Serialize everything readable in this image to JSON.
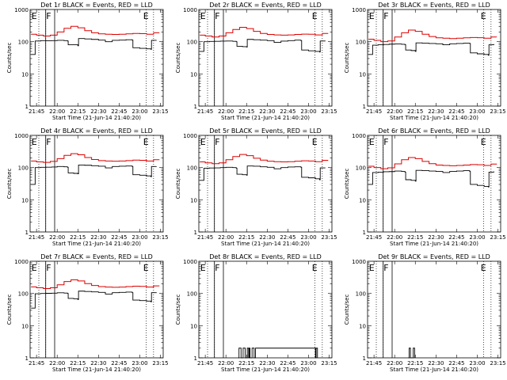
{
  "chart_data": {
    "type": "line",
    "layout": "3x3 grid",
    "ylabel": "Counts/sec",
    "xlabel": "Start Time (21-Jun-14 21:40:20)",
    "x_tick_labels": [
      "21:45",
      "22:00",
      "22:15",
      "22:30",
      "22:45",
      "23:00",
      "23:15"
    ],
    "y_scale": "log",
    "ylim": [
      1,
      1000
    ],
    "y_tick_labels": [
      "1",
      "10",
      "100",
      "1000"
    ],
    "series_colors": {
      "events": "#000000",
      "lld": "#dd0000"
    },
    "markers": {
      "E_left": {
        "label": "E",
        "time": "21:43:20"
      },
      "F": {
        "label": "F",
        "time": "21:53:50"
      },
      "E_right": {
        "label": "E",
        "time": "23:04:30"
      }
    },
    "vlines": {
      "dotted": [
        "21:46:40",
        "21:51:40",
        "23:04:40",
        "23:10:00"
      ],
      "solid": [
        "21:51:40",
        "21:58:10"
      ]
    },
    "panels": [
      {
        "title": "Det 1r BLACK = Events, RED = LLD",
        "events": {
          "x": [
            "21:41:00",
            "21:44:00",
            "21:48:00",
            "21:52:00",
            "21:56:00",
            "22:00:00",
            "22:05:00",
            "22:07:30",
            "22:08:00",
            "22:12:00",
            "22:15:00",
            "22:15:30",
            "22:20:00",
            "22:25:00",
            "22:30:00",
            "22:35:00",
            "22:40:00",
            "22:45:00",
            "22:50:00",
            "22:54:30",
            "22:55:00",
            "23:00:00",
            "23:05:00",
            "23:08:00",
            "23:08:30",
            "23:12:00"
          ],
          "y": [
            40,
            105,
            108,
            107,
            108,
            110,
            108,
            105,
            80,
            80,
            75,
            125,
            122,
            118,
            112,
            100,
            110,
            112,
            115,
            112,
            65,
            62,
            60,
            58,
            110,
            112
          ]
        },
        "lld": {
          "x": [
            "21:41:00",
            "21:45:00",
            "21:50:00",
            "21:55:00",
            "22:00:00",
            "22:05:00",
            "22:10:00",
            "22:15:00",
            "22:20:00",
            "22:25:00",
            "22:30:00",
            "22:35:00",
            "22:40:00",
            "22:45:00",
            "22:50:00",
            "22:55:00",
            "23:00:00",
            "23:05:00",
            "23:10:00",
            "23:14:00"
          ],
          "y": [
            170,
            160,
            150,
            160,
            200,
            260,
            300,
            270,
            220,
            190,
            175,
            170,
            168,
            170,
            175,
            180,
            178,
            170,
            190,
            185
          ]
        }
      },
      {
        "title": "Det 2r BLACK = Events, RED = LLD",
        "events": {
          "x": [
            "21:41:00",
            "21:44:00",
            "21:48:00",
            "21:52:00",
            "21:56:00",
            "22:00:00",
            "22:05:00",
            "22:07:30",
            "22:08:00",
            "22:12:00",
            "22:15:00",
            "22:15:30",
            "22:20:00",
            "22:25:00",
            "22:30:00",
            "22:35:00",
            "22:40:00",
            "22:45:00",
            "22:50:00",
            "22:54:30",
            "22:55:00",
            "23:00:00",
            "23:05:00",
            "23:08:00",
            "23:08:30",
            "23:12:00"
          ],
          "y": [
            50,
            100,
            102,
            103,
            104,
            105,
            103,
            100,
            72,
            70,
            68,
            118,
            115,
            112,
            108,
            95,
            104,
            108,
            112,
            108,
            55,
            52,
            50,
            48,
            105,
            108
          ]
        },
        "lld": {
          "x": [
            "21:41:00",
            "21:45:00",
            "21:50:00",
            "21:55:00",
            "22:00:00",
            "22:05:00",
            "22:10:00",
            "22:15:00",
            "22:20:00",
            "22:25:00",
            "22:30:00",
            "22:35:00",
            "22:40:00",
            "22:45:00",
            "22:50:00",
            "22:55:00",
            "23:00:00",
            "23:05:00",
            "23:10:00",
            "23:14:00"
          ],
          "y": [
            160,
            150,
            140,
            150,
            190,
            240,
            280,
            255,
            210,
            180,
            168,
            162,
            160,
            162,
            168,
            172,
            170,
            162,
            180,
            175
          ]
        }
      },
      {
        "title": "Det 3r BLACK = Events, RED = LLD",
        "events": {
          "x": [
            "21:41:00",
            "21:44:00",
            "21:48:00",
            "21:52:00",
            "21:56:00",
            "22:00:00",
            "22:05:00",
            "22:07:30",
            "22:08:00",
            "22:12:00",
            "22:15:00",
            "22:15:30",
            "22:20:00",
            "22:25:00",
            "22:30:00",
            "22:35:00",
            "22:40:00",
            "22:45:00",
            "22:50:00",
            "22:54:30",
            "22:55:00",
            "23:00:00",
            "23:05:00",
            "23:08:00",
            "23:08:30",
            "23:12:00"
          ],
          "y": [
            40,
            78,
            80,
            82,
            84,
            85,
            83,
            80,
            55,
            53,
            50,
            92,
            90,
            88,
            86,
            80,
            86,
            88,
            90,
            88,
            45,
            42,
            40,
            38,
            80,
            84
          ]
        },
        "lld": {
          "x": [
            "21:41:00",
            "21:45:00",
            "21:50:00",
            "21:55:00",
            "22:00:00",
            "22:05:00",
            "22:10:00",
            "22:15:00",
            "22:20:00",
            "22:25:00",
            "22:30:00",
            "22:35:00",
            "22:40:00",
            "22:45:00",
            "22:50:00",
            "22:55:00",
            "23:00:00",
            "23:05:00",
            "23:10:00",
            "23:14:00"
          ],
          "y": [
            120,
            110,
            100,
            105,
            140,
            190,
            230,
            210,
            170,
            145,
            132,
            128,
            125,
            128,
            132,
            135,
            133,
            128,
            140,
            138
          ]
        }
      },
      {
        "title": "Det 4r BLACK = Events, RED = LLD",
        "events": {
          "x": [
            "21:41:00",
            "21:44:00",
            "21:48:00",
            "21:52:00",
            "21:56:00",
            "22:00:00",
            "22:05:00",
            "22:07:30",
            "22:08:00",
            "22:12:00",
            "22:15:00",
            "22:15:30",
            "22:20:00",
            "22:25:00",
            "22:30:00",
            "22:35:00",
            "22:40:00",
            "22:45:00",
            "22:50:00",
            "22:54:30",
            "22:55:00",
            "23:00:00",
            "23:05:00",
            "23:08:00",
            "23:08:30",
            "23:12:00"
          ],
          "y": [
            30,
            100,
            102,
            103,
            104,
            108,
            106,
            102,
            68,
            66,
            64,
            120,
            118,
            114,
            110,
            98,
            108,
            110,
            112,
            108,
            60,
            58,
            55,
            52,
            108,
            110
          ]
        },
        "lld": {
          "x": [
            "21:41:00",
            "21:45:00",
            "21:50:00",
            "21:55:00",
            "22:00:00",
            "22:05:00",
            "22:10:00",
            "22:15:00",
            "22:20:00",
            "22:25:00",
            "22:30:00",
            "22:35:00",
            "22:40:00",
            "22:45:00",
            "22:50:00",
            "22:55:00",
            "23:00:00",
            "23:05:00",
            "23:10:00",
            "23:14:00"
          ],
          "y": [
            160,
            150,
            145,
            155,
            190,
            240,
            270,
            250,
            205,
            178,
            165,
            160,
            158,
            160,
            165,
            170,
            168,
            160,
            175,
            170
          ]
        }
      },
      {
        "title": "Det 5r BLACK = Events, RED = LLD",
        "events": {
          "x": [
            "21:41:00",
            "21:44:00",
            "21:48:00",
            "21:52:00",
            "21:56:00",
            "22:00:00",
            "22:05:00",
            "22:07:30",
            "22:08:00",
            "22:12:00",
            "22:15:00",
            "22:15:30",
            "22:20:00",
            "22:25:00",
            "22:30:00",
            "22:35:00",
            "22:40:00",
            "22:45:00",
            "22:50:00",
            "22:54:30",
            "22:55:00",
            "23:00:00",
            "23:05:00",
            "23:08:00",
            "23:08:30",
            "23:12:00"
          ],
          "y": [
            40,
            95,
            97,
            98,
            100,
            102,
            100,
            96,
            62,
            60,
            58,
            112,
            110,
            106,
            102,
            92,
            100,
            104,
            106,
            102,
            50,
            48,
            45,
            42,
            98,
            100
          ]
        },
        "lld": {
          "x": [
            "21:41:00",
            "21:45:00",
            "21:50:00",
            "21:55:00",
            "22:00:00",
            "22:05:00",
            "22:10:00",
            "22:15:00",
            "22:20:00",
            "22:25:00",
            "22:30:00",
            "22:35:00",
            "22:40:00",
            "22:45:00",
            "22:50:00",
            "22:55:00",
            "23:00:00",
            "23:05:00",
            "23:10:00",
            "23:14:00"
          ],
          "y": [
            150,
            140,
            132,
            140,
            175,
            220,
            255,
            235,
            195,
            170,
            158,
            152,
            150,
            152,
            158,
            162,
            160,
            152,
            168,
            162
          ]
        }
      },
      {
        "title": "Det 6r BLACK = Events, RED = LLD",
        "events": {
          "x": [
            "21:41:00",
            "21:44:00",
            "21:48:00",
            "21:52:00",
            "21:56:00",
            "22:00:00",
            "22:05:00",
            "22:07:30",
            "22:08:00",
            "22:12:00",
            "22:15:00",
            "22:15:30",
            "22:20:00",
            "22:25:00",
            "22:30:00",
            "22:35:00",
            "22:40:00",
            "22:45:00",
            "22:50:00",
            "22:54:30",
            "22:55:00",
            "23:00:00",
            "23:05:00",
            "23:08:00",
            "23:08:30",
            "23:12:00"
          ],
          "y": [
            30,
            70,
            72,
            74,
            75,
            78,
            76,
            72,
            42,
            40,
            38,
            82,
            80,
            78,
            76,
            70,
            76,
            78,
            80,
            76,
            30,
            28,
            26,
            25,
            72,
            76
          ]
        },
        "lld": {
          "x": [
            "21:41:00",
            "21:45:00",
            "21:50:00",
            "21:55:00",
            "22:00:00",
            "22:05:00",
            "22:10:00",
            "22:15:00",
            "22:20:00",
            "22:25:00",
            "22:30:00",
            "22:35:00",
            "22:40:00",
            "22:45:00",
            "22:50:00",
            "22:55:00",
            "23:00:00",
            "23:05:00",
            "23:10:00",
            "23:14:00"
          ],
          "y": [
            110,
            100,
            92,
            98,
            130,
            175,
            205,
            190,
            155,
            132,
            120,
            116,
            114,
            116,
            120,
            124,
            122,
            116,
            128,
            125
          ]
        }
      },
      {
        "title": "Det 7r BLACK = Events, RED = LLD",
        "events": {
          "x": [
            "21:41:00",
            "21:44:00",
            "21:48:00",
            "21:52:00",
            "21:56:00",
            "22:00:00",
            "22:05:00",
            "22:07:30",
            "22:08:00",
            "22:12:00",
            "22:15:00",
            "22:15:30",
            "22:20:00",
            "22:25:00",
            "22:30:00",
            "22:35:00",
            "22:40:00",
            "22:45:00",
            "22:50:00",
            "22:54:30",
            "22:55:00",
            "23:00:00",
            "23:05:00",
            "23:08:00",
            "23:08:30",
            "23:12:00"
          ],
          "y": [
            35,
            98,
            100,
            101,
            102,
            105,
            103,
            100,
            70,
            68,
            65,
            118,
            115,
            112,
            108,
            96,
            106,
            108,
            110,
            106,
            62,
            60,
            58,
            55,
            106,
            108
          ]
        },
        "lld": {
          "x": [
            "21:41:00",
            "21:45:00",
            "21:50:00",
            "21:55:00",
            "22:00:00",
            "22:05:00",
            "22:10:00",
            "22:15:00",
            "22:20:00",
            "22:25:00",
            "22:30:00",
            "22:35:00",
            "22:40:00",
            "22:45:00",
            "22:50:00",
            "22:55:00",
            "23:00:00",
            "23:05:00",
            "23:10:00",
            "23:14:00"
          ],
          "y": [
            160,
            150,
            142,
            150,
            185,
            235,
            265,
            245,
            202,
            176,
            163,
            158,
            156,
            158,
            163,
            168,
            166,
            158,
            172,
            168
          ]
        }
      },
      {
        "title": "Det 8r BLACK = Events, RED = LLD",
        "events": {
          "x": [
            "22:09:00",
            "22:09:30",
            "22:10:30",
            "22:11:00",
            "22:12:00",
            "22:12:30",
            "22:13:30",
            "22:14:00",
            "22:15:00",
            "22:15:30",
            "22:16:00",
            "22:16:30",
            "22:17:00",
            "22:17:30",
            "22:18:30",
            "22:19:00",
            "22:20:00",
            "22:20:30",
            "22:21:00",
            "22:21:30",
            "23:05:00",
            "23:05:30",
            "23:06:00",
            "23:06:30"
          ],
          "y": [
            1,
            2,
            2,
            1,
            1,
            2,
            2,
            1,
            1,
            2,
            2,
            1,
            2,
            1,
            1,
            2,
            2,
            1,
            1,
            2,
            1,
            2,
            2,
            1
          ]
        },
        "lld": {
          "x": [],
          "y": []
        }
      },
      {
        "title": "Det 9r BLACK = Events, RED = LLD",
        "events": {
          "x": [
            "22:10:00",
            "22:10:30",
            "22:11:00",
            "22:11:30",
            "22:13:00",
            "22:13:30",
            "22:14:00",
            "22:14:30"
          ],
          "y": [
            1,
            2,
            2,
            1,
            1,
            2,
            2,
            1
          ]
        },
        "lld": {
          "x": [],
          "y": []
        }
      }
    ]
  }
}
